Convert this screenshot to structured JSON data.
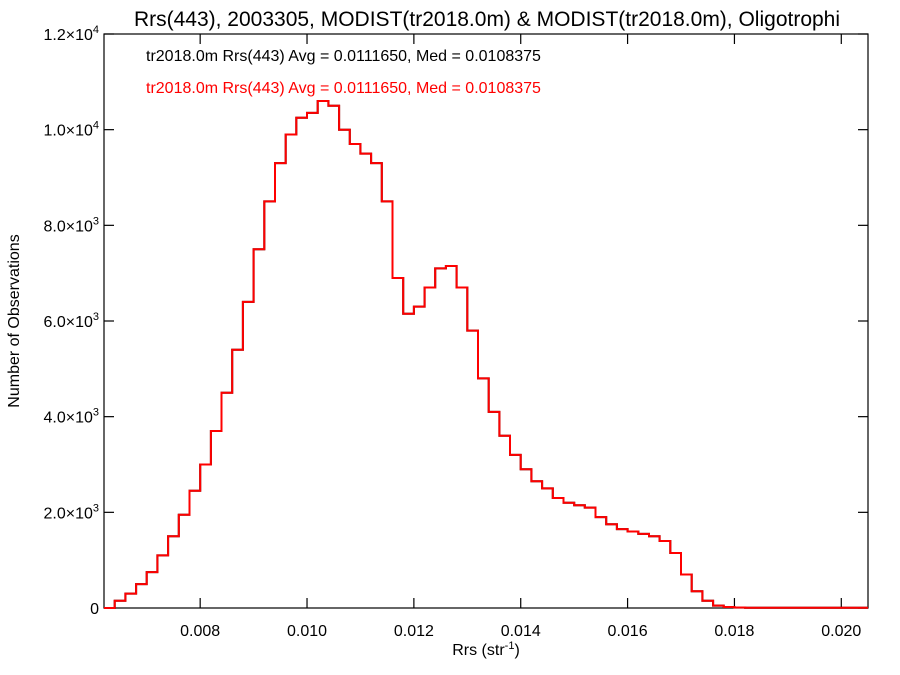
{
  "chart_data": {
    "type": "line",
    "title": "Rrs(443), 2003305, MODIST(tr2018.0m) & MODIST(tr2018.0m), Oligotrophi",
    "xlabel": "Rrs (str",
    "xlabel_exp": "-1",
    "xlabel_suffix": ")",
    "ylabel": "Number of Observations",
    "xlim": [
      0.0062,
      0.0205
    ],
    "ylim": [
      0,
      12000
    ],
    "x_ticks": [
      "0.008",
      "0.010",
      "0.012",
      "0.014",
      "0.016",
      "0.018",
      "0.020"
    ],
    "x_tick_values": [
      0.008,
      0.01,
      0.012,
      0.014,
      0.016,
      0.018,
      0.02
    ],
    "y_ticks": [
      {
        "value": 0,
        "mant": "0",
        "exp": ""
      },
      {
        "value": 2000,
        "mant": "2.0×10",
        "exp": "3"
      },
      {
        "value": 4000,
        "mant": "4.0×10",
        "exp": "3"
      },
      {
        "value": 6000,
        "mant": "6.0×10",
        "exp": "3"
      },
      {
        "value": 8000,
        "mant": "8.0×10",
        "exp": "3"
      },
      {
        "value": 10000,
        "mant": "1.0×10",
        "exp": "4"
      },
      {
        "value": 12000,
        "mant": "1.2×10",
        "exp": "4"
      }
    ],
    "grid": false,
    "legend": [
      {
        "text": "tr2018.0m Rrs(443) Avg = 0.0111650, Med = 0.0108375",
        "color": "#000000"
      },
      {
        "text": "tr2018.0m Rrs(443) Avg = 0.0111650, Med = 0.0108375",
        "color": "#ff0000"
      }
    ],
    "series": [
      {
        "color": "#000000",
        "style": "step",
        "x": [
          0.0062,
          0.0064,
          0.0066,
          0.0068,
          0.007,
          0.0072,
          0.0074,
          0.0076,
          0.0078,
          0.008,
          0.0082,
          0.0084,
          0.0086,
          0.0088,
          0.009,
          0.0092,
          0.0094,
          0.0096,
          0.0098,
          0.01,
          0.0102,
          0.0104,
          0.0106,
          0.0108,
          0.011,
          0.0112,
          0.0114,
          0.0116,
          0.0118,
          0.012,
          0.0122,
          0.0124,
          0.0126,
          0.0128,
          0.013,
          0.0132,
          0.0134,
          0.0136,
          0.0138,
          0.014,
          0.0142,
          0.0144,
          0.0146,
          0.0148,
          0.015,
          0.0152,
          0.0154,
          0.0156,
          0.0158,
          0.016,
          0.0162,
          0.0164,
          0.0166,
          0.0168,
          0.017,
          0.0172,
          0.0174,
          0.0176,
          0.0178,
          0.018,
          0.0182,
          0.0184,
          0.0186,
          0.0188,
          0.019,
          0.0192,
          0.0194,
          0.0196,
          0.0198,
          0.02,
          0.0202,
          0.0204
        ],
        "y": [
          0,
          150,
          300,
          500,
          750,
          1100,
          1500,
          1950,
          2450,
          3000,
          3700,
          4500,
          5400,
          6400,
          7500,
          8500,
          9300,
          9900,
          10250,
          10350,
          10600,
          10500,
          10000,
          9700,
          9500,
          9300,
          8500,
          6900,
          6150,
          6300,
          6700,
          7100,
          7150,
          6700,
          5800,
          4800,
          4100,
          3600,
          3200,
          2900,
          2650,
          2500,
          2300,
          2200,
          2150,
          2100,
          1900,
          1750,
          1650,
          1600,
          1550,
          1500,
          1400,
          1150,
          700,
          350,
          150,
          50,
          20,
          10,
          5,
          5,
          5,
          5,
          5,
          5,
          5,
          5,
          5,
          5,
          5,
          5
        ]
      },
      {
        "color": "#ff0000",
        "style": "step",
        "x": [
          0.0062,
          0.0064,
          0.0066,
          0.0068,
          0.007,
          0.0072,
          0.0074,
          0.0076,
          0.0078,
          0.008,
          0.0082,
          0.0084,
          0.0086,
          0.0088,
          0.009,
          0.0092,
          0.0094,
          0.0096,
          0.0098,
          0.01,
          0.0102,
          0.0104,
          0.0106,
          0.0108,
          0.011,
          0.0112,
          0.0114,
          0.0116,
          0.0118,
          0.012,
          0.0122,
          0.0124,
          0.0126,
          0.0128,
          0.013,
          0.0132,
          0.0134,
          0.0136,
          0.0138,
          0.014,
          0.0142,
          0.0144,
          0.0146,
          0.0148,
          0.015,
          0.0152,
          0.0154,
          0.0156,
          0.0158,
          0.016,
          0.0162,
          0.0164,
          0.0166,
          0.0168,
          0.017,
          0.0172,
          0.0174,
          0.0176,
          0.0178,
          0.018,
          0.0182,
          0.0184,
          0.0186,
          0.0188,
          0.019,
          0.0192,
          0.0194,
          0.0196,
          0.0198,
          0.02,
          0.0202,
          0.0204
        ],
        "y": [
          0,
          150,
          300,
          500,
          750,
          1100,
          1500,
          1950,
          2450,
          3000,
          3700,
          4500,
          5400,
          6400,
          7500,
          8500,
          9300,
          9900,
          10250,
          10350,
          10600,
          10500,
          10000,
          9700,
          9500,
          9300,
          8500,
          6900,
          6150,
          6300,
          6700,
          7100,
          7150,
          6700,
          5800,
          4800,
          4100,
          3600,
          3200,
          2900,
          2650,
          2500,
          2300,
          2200,
          2150,
          2100,
          1900,
          1750,
          1650,
          1600,
          1550,
          1500,
          1400,
          1150,
          700,
          350,
          150,
          50,
          20,
          10,
          5,
          5,
          5,
          5,
          5,
          5,
          5,
          5,
          5,
          5,
          5,
          5
        ]
      }
    ]
  }
}
